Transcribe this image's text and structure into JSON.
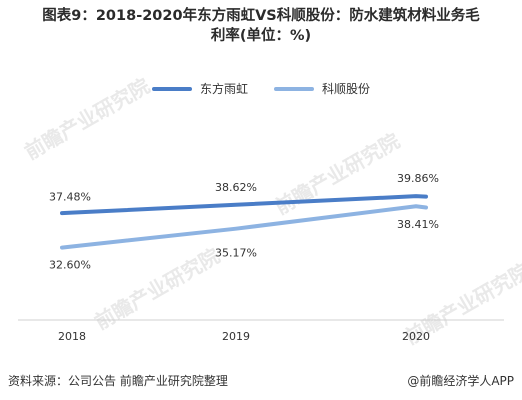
{
  "title_line1": "图表9：2018-2020年东方雨虹VS科顺股份：防水建筑材料业务毛",
  "title_line2": "利率(单位：%)",
  "source_text": "资料来源：公司公告 前瞻产业研究院整理",
  "brand_text": "@前瞻经济学人APP",
  "watermark_text": "前瞻产业研究院",
  "chart_data": {
    "type": "line",
    "categories": [
      "2018",
      "2019",
      "2020"
    ],
    "series": [
      {
        "name": "东方雨虹",
        "values": [
          37.48,
          38.62,
          39.86
        ],
        "labels": [
          "37.48%",
          "38.62%",
          "39.86%"
        ],
        "color": "#4a7dc7"
      },
      {
        "name": "科顺股份",
        "values": [
          32.6,
          35.17,
          38.41
        ],
        "labels": [
          "32.60%",
          "35.17%",
          "38.41%"
        ],
        "color": "#8db3e2"
      }
    ],
    "ylim": [
      22,
      52
    ],
    "grid": false,
    "legend": "top"
  }
}
